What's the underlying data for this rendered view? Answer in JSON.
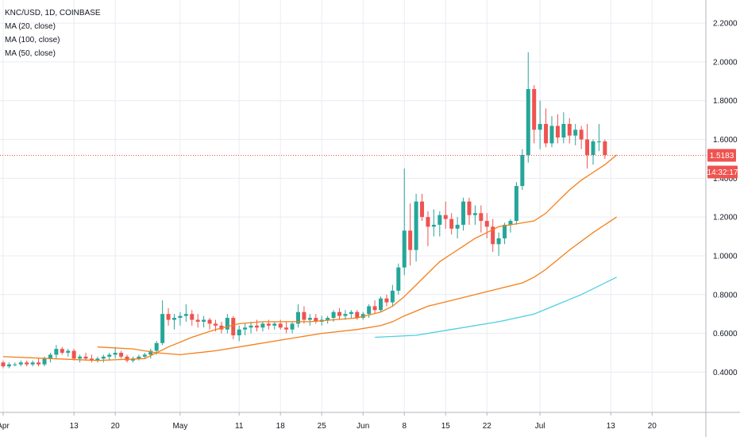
{
  "legend": {
    "title": "KNC/USD, 1D, COINBASE",
    "ma20": "MA (20, close)",
    "ma100": "MA (100, close)",
    "ma50": "MA (50, close)"
  },
  "price_tag": {
    "price": "1.5183",
    "countdown": "14:32:17",
    "value": 1.5183
  },
  "colors": {
    "up": "#26a69a",
    "down": "#ef5350",
    "ma20": "#f57f17",
    "ma50": "#f57f17",
    "ma100": "#4dd0e1",
    "price_line": "#ef5350",
    "grid": "#e9ecf2"
  },
  "chart_data": {
    "type": "candlestick",
    "title": "KNC/USD, 1D, COINBASE",
    "y_ticks": [
      "0.4000",
      "0.6000",
      "0.8000",
      "1.0000",
      "1.2000",
      "1.4000",
      "1.6000",
      "1.8000",
      "2.0000",
      "2.2000"
    ],
    "ylim": [
      0.25,
      2.27
    ],
    "x_ticks": [
      "Apr",
      "13",
      "20",
      "May",
      "11",
      "18",
      "25",
      "Jun",
      "8",
      "15",
      "22",
      "Jul",
      "13",
      "20"
    ],
    "x_tick_days": [
      0,
      12,
      19,
      30,
      40,
      47,
      54,
      61,
      68,
      75,
      82,
      91,
      103,
      110
    ],
    "candles": [
      [
        0.45,
        0.46,
        0.42,
        0.43
      ],
      [
        0.43,
        0.45,
        0.42,
        0.44
      ],
      [
        0.44,
        0.45,
        0.43,
        0.44
      ],
      [
        0.44,
        0.46,
        0.43,
        0.45
      ],
      [
        0.45,
        0.46,
        0.43,
        0.44
      ],
      [
        0.44,
        0.46,
        0.43,
        0.45
      ],
      [
        0.45,
        0.47,
        0.43,
        0.44
      ],
      [
        0.44,
        0.48,
        0.43,
        0.47
      ],
      [
        0.47,
        0.5,
        0.45,
        0.49
      ],
      [
        0.49,
        0.54,
        0.47,
        0.52
      ],
      [
        0.52,
        0.53,
        0.49,
        0.5
      ],
      [
        0.5,
        0.52,
        0.48,
        0.51
      ],
      [
        0.51,
        0.52,
        0.46,
        0.47
      ],
      [
        0.47,
        0.49,
        0.45,
        0.48
      ],
      [
        0.48,
        0.5,
        0.46,
        0.47
      ],
      [
        0.47,
        0.49,
        0.45,
        0.46
      ],
      [
        0.46,
        0.48,
        0.45,
        0.47
      ],
      [
        0.47,
        0.49,
        0.45,
        0.48
      ],
      [
        0.48,
        0.5,
        0.46,
        0.49
      ],
      [
        0.49,
        0.53,
        0.47,
        0.5
      ],
      [
        0.5,
        0.51,
        0.47,
        0.48
      ],
      [
        0.48,
        0.49,
        0.45,
        0.46
      ],
      [
        0.46,
        0.48,
        0.45,
        0.47
      ],
      [
        0.47,
        0.49,
        0.46,
        0.48
      ],
      [
        0.48,
        0.5,
        0.47,
        0.49
      ],
      [
        0.49,
        0.52,
        0.47,
        0.51
      ],
      [
        0.51,
        0.56,
        0.49,
        0.55
      ],
      [
        0.55,
        0.77,
        0.54,
        0.7
      ],
      [
        0.7,
        0.73,
        0.64,
        0.67
      ],
      [
        0.67,
        0.7,
        0.62,
        0.68
      ],
      [
        0.68,
        0.71,
        0.64,
        0.69
      ],
      [
        0.69,
        0.75,
        0.66,
        0.7
      ],
      [
        0.7,
        0.72,
        0.64,
        0.67
      ],
      [
        0.67,
        0.7,
        0.63,
        0.66
      ],
      [
        0.66,
        0.69,
        0.63,
        0.67
      ],
      [
        0.67,
        0.68,
        0.62,
        0.65
      ],
      [
        0.65,
        0.67,
        0.61,
        0.64
      ],
      [
        0.64,
        0.66,
        0.6,
        0.62
      ],
      [
        0.62,
        0.7,
        0.6,
        0.68
      ],
      [
        0.68,
        0.69,
        0.57,
        0.59
      ],
      [
        0.59,
        0.64,
        0.56,
        0.62
      ],
      [
        0.62,
        0.65,
        0.59,
        0.63
      ],
      [
        0.63,
        0.66,
        0.6,
        0.64
      ],
      [
        0.64,
        0.67,
        0.61,
        0.63
      ],
      [
        0.63,
        0.66,
        0.61,
        0.65
      ],
      [
        0.65,
        0.67,
        0.62,
        0.64
      ],
      [
        0.64,
        0.66,
        0.62,
        0.65
      ],
      [
        0.65,
        0.67,
        0.62,
        0.63
      ],
      [
        0.63,
        0.66,
        0.6,
        0.62
      ],
      [
        0.62,
        0.66,
        0.6,
        0.65
      ],
      [
        0.65,
        0.75,
        0.63,
        0.71
      ],
      [
        0.71,
        0.74,
        0.65,
        0.67
      ],
      [
        0.67,
        0.7,
        0.64,
        0.68
      ],
      [
        0.68,
        0.7,
        0.65,
        0.66
      ],
      [
        0.66,
        0.69,
        0.64,
        0.67
      ],
      [
        0.67,
        0.69,
        0.65,
        0.68
      ],
      [
        0.68,
        0.72,
        0.66,
        0.71
      ],
      [
        0.71,
        0.73,
        0.67,
        0.69
      ],
      [
        0.69,
        0.72,
        0.67,
        0.7
      ],
      [
        0.7,
        0.72,
        0.68,
        0.71
      ],
      [
        0.71,
        0.72,
        0.67,
        0.68
      ],
      [
        0.68,
        0.71,
        0.67,
        0.7
      ],
      [
        0.7,
        0.75,
        0.68,
        0.74
      ],
      [
        0.74,
        0.77,
        0.7,
        0.72
      ],
      [
        0.72,
        0.79,
        0.71,
        0.78
      ],
      [
        0.78,
        0.8,
        0.74,
        0.76
      ],
      [
        0.76,
        0.85,
        0.74,
        0.82
      ],
      [
        0.82,
        0.96,
        0.8,
        0.94
      ],
      [
        0.94,
        1.45,
        0.9,
        1.13
      ],
      [
        1.13,
        1.27,
        0.95,
        1.03
      ],
      [
        1.03,
        1.32,
        0.97,
        1.28
      ],
      [
        1.28,
        1.32,
        1.18,
        1.2
      ],
      [
        1.2,
        1.23,
        1.05,
        1.15
      ],
      [
        1.15,
        1.24,
        1.1,
        1.16
      ],
      [
        1.16,
        1.23,
        1.1,
        1.21
      ],
      [
        1.21,
        1.28,
        1.14,
        1.19
      ],
      [
        1.19,
        1.22,
        1.11,
        1.14
      ],
      [
        1.14,
        1.2,
        1.09,
        1.16
      ],
      [
        1.16,
        1.3,
        1.13,
        1.28
      ],
      [
        1.28,
        1.3,
        1.16,
        1.21
      ],
      [
        1.21,
        1.26,
        1.16,
        1.22
      ],
      [
        1.22,
        1.26,
        1.12,
        1.18
      ],
      [
        1.18,
        1.22,
        1.09,
        1.15
      ],
      [
        1.15,
        1.19,
        1.02,
        1.06
      ],
      [
        1.06,
        1.12,
        1.0,
        1.09
      ],
      [
        1.09,
        1.17,
        1.06,
        1.16
      ],
      [
        1.16,
        1.19,
        1.12,
        1.18
      ],
      [
        1.18,
        1.38,
        1.16,
        1.36
      ],
      [
        1.36,
        1.55,
        1.34,
        1.52
      ],
      [
        1.52,
        2.05,
        1.48,
        1.86
      ],
      [
        1.86,
        1.88,
        1.58,
        1.65
      ],
      [
        1.65,
        1.8,
        1.55,
        1.68
      ],
      [
        1.68,
        1.76,
        1.56,
        1.58
      ],
      [
        1.58,
        1.72,
        1.56,
        1.67
      ],
      [
        1.67,
        1.73,
        1.58,
        1.61
      ],
      [
        1.61,
        1.74,
        1.58,
        1.68
      ],
      [
        1.68,
        1.71,
        1.58,
        1.62
      ],
      [
        1.62,
        1.68,
        1.57,
        1.65
      ],
      [
        1.65,
        1.67,
        1.55,
        1.6
      ],
      [
        1.6,
        1.68,
        1.45,
        1.52
      ],
      [
        1.52,
        1.6,
        1.47,
        1.59
      ],
      [
        1.59,
        1.68,
        1.54,
        1.59
      ],
      [
        1.59,
        1.6,
        1.5,
        1.52
      ]
    ],
    "ma20_days": [
      0,
      8,
      16,
      24,
      28,
      32,
      36,
      40,
      44,
      48,
      52,
      56,
      60,
      64,
      66,
      68,
      70,
      72,
      74,
      76,
      78,
      80,
      82,
      84,
      86,
      88,
      90,
      92,
      94,
      96,
      98,
      100,
      102,
      104
    ],
    "ma20_values": [
      0.48,
      0.47,
      0.46,
      0.47,
      0.53,
      0.58,
      0.62,
      0.65,
      0.66,
      0.66,
      0.66,
      0.67,
      0.68,
      0.71,
      0.74,
      0.79,
      0.85,
      0.91,
      0.97,
      1.01,
      1.05,
      1.09,
      1.12,
      1.15,
      1.16,
      1.17,
      1.18,
      1.22,
      1.28,
      1.34,
      1.39,
      1.43,
      1.47,
      1.52
    ],
    "ma50_days": [
      16,
      22,
      26,
      30,
      36,
      42,
      48,
      54,
      60,
      64,
      66,
      68,
      72,
      76,
      80,
      84,
      88,
      90,
      92,
      96,
      100,
      104
    ],
    "ma50_values": [
      0.53,
      0.52,
      0.5,
      0.49,
      0.51,
      0.54,
      0.57,
      0.6,
      0.62,
      0.64,
      0.66,
      0.69,
      0.74,
      0.77,
      0.8,
      0.83,
      0.86,
      0.89,
      0.93,
      1.03,
      1.12,
      1.2
    ],
    "ma100_days": [
      63,
      70,
      76,
      84,
      90,
      94,
      98,
      104
    ],
    "ma100_values": [
      0.58,
      0.59,
      0.62,
      0.66,
      0.7,
      0.75,
      0.8,
      0.89
    ]
  }
}
